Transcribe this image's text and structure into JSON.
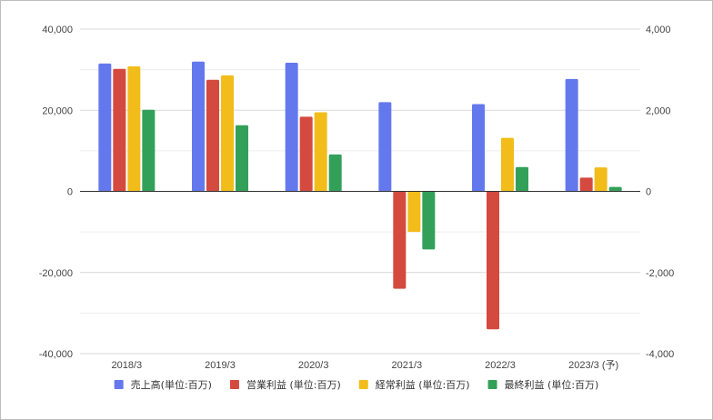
{
  "chart_data": {
    "type": "bar",
    "categories": [
      "2018/3",
      "2019/3",
      "2020/3",
      "2021/3",
      "2022/3",
      "2023/3 (予)"
    ],
    "series": [
      {
        "name": "売上高(単位:百万)",
        "axis": "left",
        "color": "#6478ee",
        "values": [
          31500,
          32000,
          31700,
          22000,
          21500,
          27700
        ]
      },
      {
        "name": "営業利益 (単位:百万)",
        "axis": "right",
        "color": "#d44a3e",
        "values": [
          3020,
          2750,
          1840,
          -2400,
          -3400,
          340
        ]
      },
      {
        "name": "経常利益 (単位:百万)",
        "axis": "right",
        "color": "#f2bd1a",
        "values": [
          3080,
          2860,
          1950,
          -1000,
          1320,
          590
        ]
      },
      {
        "name": "最終利益 (単位:百万)",
        "axis": "right",
        "color": "#33a05a",
        "values": [
          2010,
          1630,
          910,
          -1430,
          600,
          110
        ]
      }
    ],
    "y_left": {
      "ticks": [
        "40,000",
        "20,000",
        "0",
        "-20,000",
        "-40,000"
      ],
      "ylim": [
        -40000,
        40000
      ]
    },
    "y_right": {
      "ticks": [
        "4,000",
        "2,000",
        "0",
        "-2,000",
        "-4,000"
      ],
      "ylim": [
        -4000,
        4000
      ]
    },
    "grid": true,
    "legend": "bottom"
  }
}
